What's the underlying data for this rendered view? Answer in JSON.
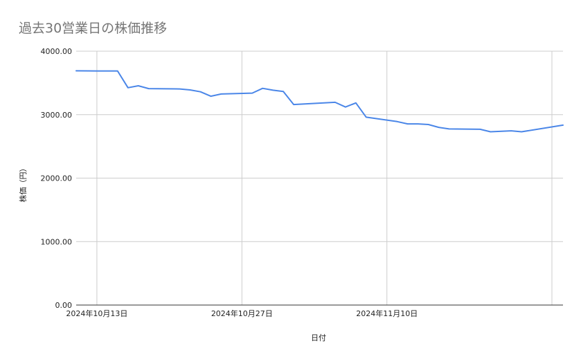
{
  "chart_data": {
    "type": "line",
    "title": "過去30営業日の株価推移",
    "xlabel": "日付",
    "ylabel": "株価（円）",
    "ylim": [
      0,
      4000
    ],
    "yticks": [
      "0.00",
      "1000.00",
      "2000.00",
      "3000.00",
      "4000.00"
    ],
    "xticks": [
      {
        "date": "2024-10-13",
        "label": "2024年10月13日"
      },
      {
        "date": "2024-10-27",
        "label": "2024年10月27日"
      },
      {
        "date": "2024-11-10",
        "label": "2024年11月10日"
      }
    ],
    "xlim": [
      "2024-10-11",
      "2024-11-27"
    ],
    "grid": true,
    "series": [
      {
        "color": "#4a86e8",
        "points": [
          [
            "2024-10-11",
            3690
          ],
          [
            "2024-10-13",
            3688
          ],
          [
            "2024-10-15",
            3688
          ],
          [
            "2024-10-16",
            3425
          ],
          [
            "2024-10-17",
            3455
          ],
          [
            "2024-10-18",
            3410
          ],
          [
            "2024-10-21",
            3405
          ],
          [
            "2024-10-22",
            3390
          ],
          [
            "2024-10-23",
            3360
          ],
          [
            "2024-10-24",
            3290
          ],
          [
            "2024-10-25",
            3325
          ],
          [
            "2024-10-28",
            3340
          ],
          [
            "2024-10-29",
            3415
          ],
          [
            "2024-10-30",
            3385
          ],
          [
            "2024-10-31",
            3365
          ],
          [
            "2024-11-01",
            3160
          ],
          [
            "2024-11-05",
            3195
          ],
          [
            "2024-11-06",
            3120
          ],
          [
            "2024-11-07",
            3185
          ],
          [
            "2024-11-08",
            2960
          ],
          [
            "2024-11-11",
            2890
          ],
          [
            "2024-11-12",
            2855
          ],
          [
            "2024-11-13",
            2855
          ],
          [
            "2024-11-14",
            2845
          ],
          [
            "2024-11-15",
            2800
          ],
          [
            "2024-11-16",
            2775
          ],
          [
            "2024-11-19",
            2770
          ],
          [
            "2024-11-20",
            2730
          ],
          [
            "2024-11-22",
            2745
          ],
          [
            "2024-11-23",
            2730
          ],
          [
            "2024-11-27",
            2835
          ]
        ]
      }
    ]
  }
}
